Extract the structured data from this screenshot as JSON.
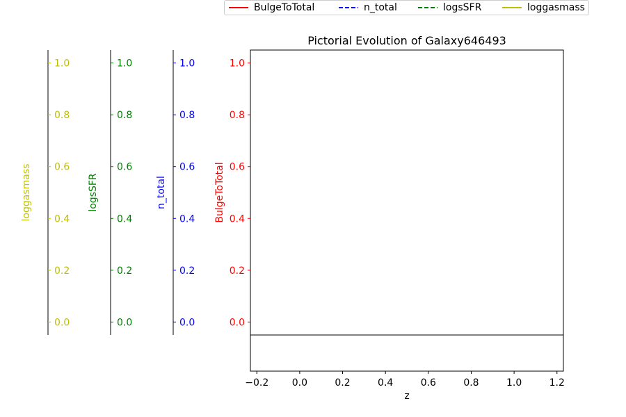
{
  "chart_data": {
    "type": "line",
    "title": "Pictorial Evolution of Galaxy646493",
    "xlabel": "z",
    "xlim": [
      -0.23,
      1.23
    ],
    "x_ticks": [
      "−0.2",
      "0.0",
      "0.2",
      "0.4",
      "0.6",
      "0.8",
      "1.0",
      "1.2"
    ],
    "x_tick_values": [
      -0.2,
      0.0,
      0.2,
      0.4,
      0.6,
      0.8,
      1.0,
      1.2
    ],
    "axes": [
      {
        "label": "BulgeToTotal",
        "color": "#ff0000",
        "ylim": [
          -0.05,
          1.05
        ],
        "ticks": [
          "0.0",
          "0.2",
          "0.4",
          "0.6",
          "0.8",
          "1.0"
        ]
      },
      {
        "label": "n_total",
        "color": "#0000ff",
        "ylim": [
          -0.05,
          1.05
        ],
        "ticks": [
          "0.0",
          "0.2",
          "0.4",
          "0.6",
          "0.8",
          "1.0"
        ]
      },
      {
        "label": "logsSFR",
        "color": "#008000",
        "ylim": [
          -0.05,
          1.05
        ],
        "ticks": [
          "0.0",
          "0.2",
          "0.4",
          "0.6",
          "0.8",
          "1.0"
        ]
      },
      {
        "label": "loggasmass",
        "color": "#bfbf00",
        "ylim": [
          -0.05,
          1.05
        ],
        "ticks": [
          "0.0",
          "0.2",
          "0.4",
          "0.6",
          "0.8",
          "1.0"
        ]
      }
    ],
    "series": [
      {
        "name": "BulgeToTotal",
        "color": "#ff0000",
        "style": "solid",
        "x": [],
        "y": []
      },
      {
        "name": "n_total",
        "color": "#0000ff",
        "style": "dashed",
        "x": [],
        "y": []
      },
      {
        "name": "logsSFR",
        "color": "#008000",
        "style": "dashed",
        "x": [],
        "y": []
      },
      {
        "name": "loggasmass",
        "color": "#bfbf00",
        "style": "solid",
        "x": [],
        "y": []
      }
    ],
    "legend": "top-center, above plot",
    "grid": false
  }
}
